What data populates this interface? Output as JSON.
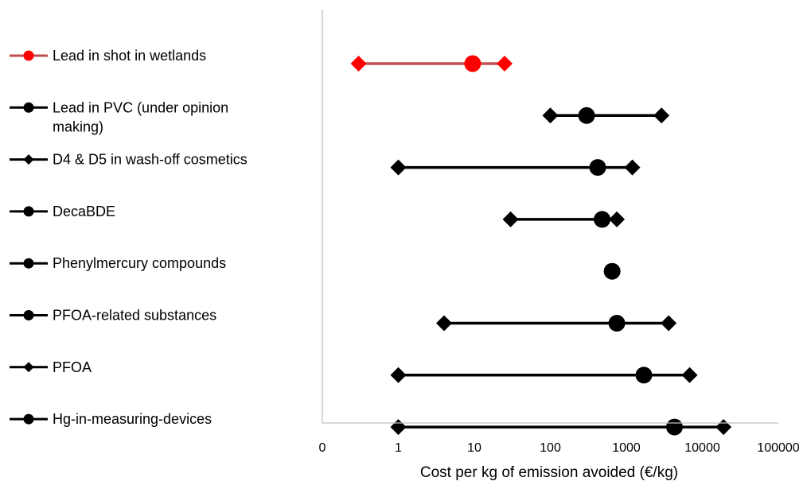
{
  "chart_data": {
    "type": "range-dot",
    "title": "",
    "xlabel": "Cost per kg of emission avoided (€/kg)",
    "ylabel": "",
    "x_scale": "log",
    "xlim": [
      0.1,
      100000
    ],
    "x_ticks": [
      "0",
      "1",
      "10",
      "100",
      "1000",
      "10000",
      "100000"
    ],
    "grid": false,
    "legend_position": "left",
    "series": [
      {
        "name": "Lead in shot in wetlands",
        "min": 0.3,
        "central": 9.5,
        "max": 25,
        "color": "#ff0000",
        "line_color": "#c0504d",
        "legend_marker": "circle"
      },
      {
        "name": "Lead in PVC (under opinion making)",
        "min": 100,
        "central": 300,
        "max": 2900,
        "color": "#000000",
        "line_color": "#000000",
        "legend_marker": "circle"
      },
      {
        "name": "D4 & D5 in wash-off cosmetics",
        "min": 1,
        "central": 420,
        "max": 1200,
        "color": "#000000",
        "line_color": "#000000",
        "legend_marker": "diamond"
      },
      {
        "name": "DecaBDE",
        "min": 30,
        "central": 480,
        "max": 750,
        "color": "#000000",
        "line_color": "#000000",
        "legend_marker": "circle"
      },
      {
        "name": "Phenylmercury compounds",
        "min": null,
        "central": 650,
        "max": null,
        "color": "#000000",
        "line_color": "#000000",
        "legend_marker": "circle"
      },
      {
        "name": "PFOA-related substances",
        "min": 4,
        "central": 750,
        "max": 3600,
        "color": "#000000",
        "line_color": "#000000",
        "legend_marker": "circle"
      },
      {
        "name": "PFOA",
        "min": 1,
        "central": 1700,
        "max": 6800,
        "color": "#000000",
        "line_color": "#000000",
        "legend_marker": "diamond"
      },
      {
        "name": "Hg-in-measuring-devices",
        "min": 1,
        "central": 4300,
        "max": 19000,
        "color": "#000000",
        "line_color": "#000000",
        "legend_marker": "circle"
      }
    ]
  }
}
